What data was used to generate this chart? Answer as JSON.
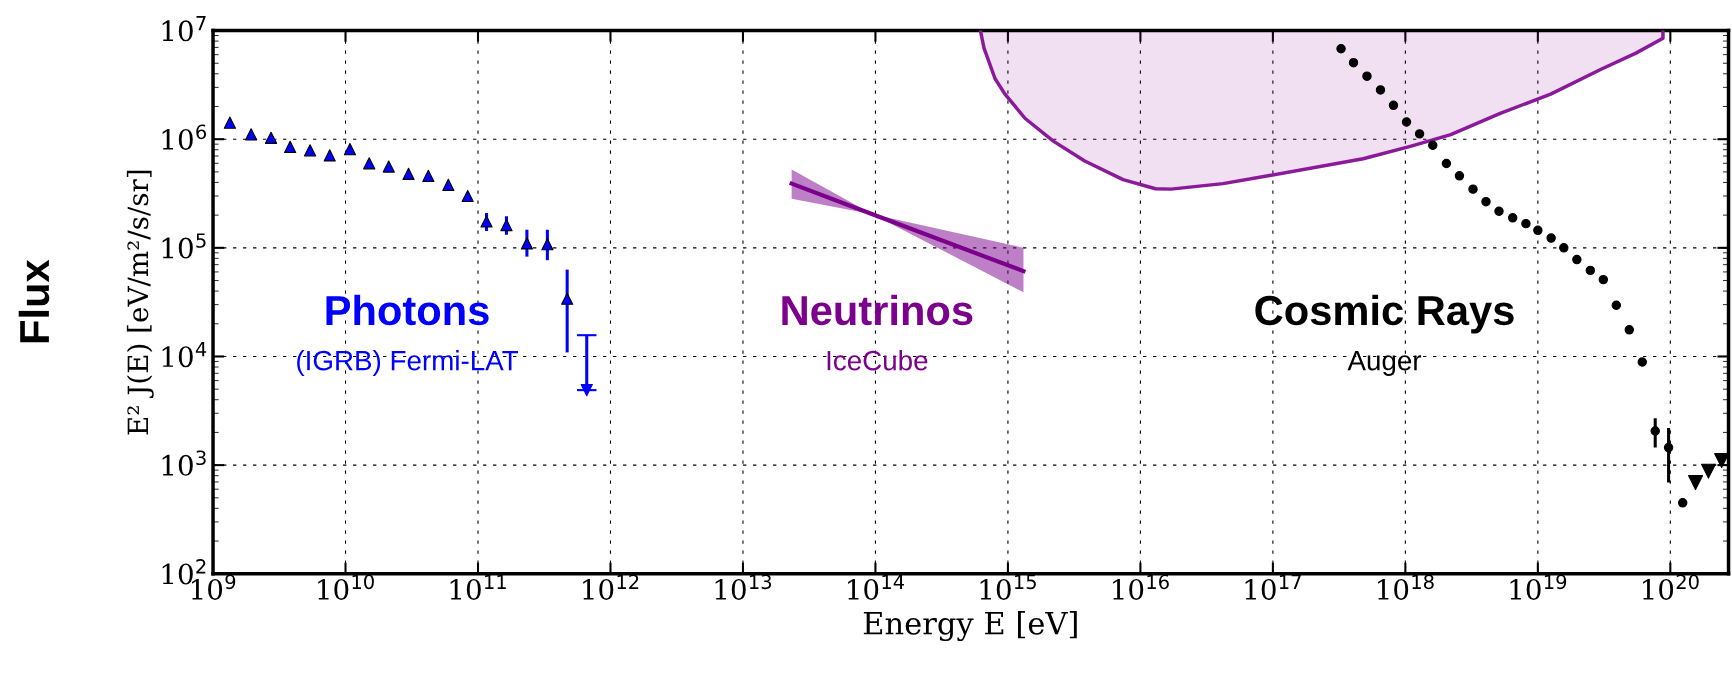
{
  "chart_data": {
    "type": "scatter",
    "xlabel": "Energy E [eV]",
    "ylabel": "E² J(E) [eV/m²/s/sr]",
    "log": "xy",
    "grid": true,
    "legend": false,
    "xlim": [
      1000000000.0,
      2.75e+20
    ],
    "xticks": [
      {
        "value": 1000000000.0,
        "label": "10$^{9}$"
      },
      {
        "value": 10000000000.0,
        "label": "10$^{10}$"
      },
      {
        "value": 100000000000.0,
        "label": "10$^{11}$"
      },
      {
        "value": 1000000000000.0,
        "label": "10$^{12}$"
      },
      {
        "value": 10000000000000.0,
        "label": "10$^{13}$"
      },
      {
        "value": 100000000000000.0,
        "label": "10$^{14}$"
      },
      {
        "value": 1000000000000000.0,
        "label": "10$^{15}$"
      },
      {
        "value": 1e+16,
        "label": "10$^{16}$"
      },
      {
        "value": 1e+17,
        "label": "10$^{17}$"
      },
      {
        "value": 1e+18,
        "label": "10$^{18}$"
      },
      {
        "value": 1e+19,
        "label": "10$^{19}$"
      },
      {
        "value": 1e+20,
        "label": "10$^{20}$"
      }
    ],
    "ylim": [
      100,
      10000000.0
    ],
    "yticks": [
      {
        "value": 100,
        "label": "10$^{2}$"
      },
      {
        "value": 1000,
        "label": "10$^{3}$"
      },
      {
        "value": 10000,
        "label": "10$^{4}$"
      },
      {
        "value": 100000,
        "label": "10$^{5}$"
      },
      {
        "value": 1000000,
        "label": "10$^{6}$"
      },
      {
        "value": 10000000,
        "label": "10$^{7}$"
      }
    ],
    "annotations": [
      "Flux",
      "(IGRB) Fermi-LAT",
      "IceCube",
      "Auger"
    ],
    "series": [
      {
        "name": "Photons",
        "marker": "triangle",
        "color": "#0000ff",
        "x": [
          1340000000.0,
          1940000000.0,
          2740000000.0,
          3820000000.0,
          5400000000.0,
          7600000000.0,
          10800000000.0,
          15100000000.0,
          21200000000.0,
          29900000000.0,
          42200000000.0,
          59700000000.0,
          83600000000.0,
          116000000000.0,
          164000000000.0,
          234000000000.0,
          334000000000.0
        ],
        "values": [
          1420000.0,
          1110000.0,
          1030000.0,
          850000.0,
          790000.0,
          710000.0,
          810000.0,
          600000.0,
          560000.0,
          480000.0,
          460000.0,
          380000.0,
          300000.0,
          175000.0,
          162000.0,
          110000.0,
          108000.0
        ],
        "errors": [
          null,
          null,
          null,
          null,
          null,
          null,
          null,
          null,
          null,
          null,
          null,
          null,
          null,
          [
            143000.0,
            209000.0
          ],
          [
            132000.0,
            195000.0
          ],
          [
            83000.0,
            147000.0
          ],
          [
            77000.0,
            147000.0
          ]
        ]
      },
      {
        "marker": "triangle",
        "color": "#0000ff",
        "x": [
          471000000000.0
        ],
        "values": [
          34000.0
        ],
        "errors": [
          [
            10900.0,
            63000.0
          ]
        ]
      },
      {
        "marker": "triangle_down",
        "color": "#0000ff",
        "x": [
          662000000000.0
        ],
        "values": [
          4900.0
        ],
        "errors": [
          [
            4900.0,
            15700.0
          ]
        ]
      },
      {
        "name": "Neutrinos",
        "type": "line",
        "color": "#7b008b",
        "x": [
          23300000000000.0,
          95000000000000.0,
          1310000000000000.0
        ],
        "values": [
          390000.0,
          204000.0,
          61000.0
        ],
        "lower": [
          283000.0,
          204000.0,
          39000.0
        ],
        "upper": [
          525000.0,
          204000.0,
          100000.0
        ]
      },
      {
        "type": "line",
        "color": "#8b1a9b",
        "x": [
          620000000000000.0,
          660000000000000.0,
          800000000000000.0,
          950000000000000.0,
          1350000000000000.0,
          2200000000000000.0,
          3800000000000000.0,
          7400000000000000.0,
          1.3e+16,
          1.7e+16,
          4.2e+16,
          9.2e+16,
          4.8e+17,
          1.09e+18,
          2.2e+18,
          5.2e+18,
          1.25e+19,
          3e+19,
          5.5e+19,
          8.8e+19,
          8.8e+19
        ],
        "values": [
          10000000.0,
          6900000.0,
          3600000.0,
          2600000.0,
          1550000.0,
          960000.0,
          630000.0,
          425000.0,
          350000.0,
          347000.0,
          390000.0,
          460000.0,
          660000.0,
          860000.0,
          1100000.0,
          1730000.0,
          2600000.0,
          4400000.0,
          6200000.0,
          8500000.0,
          10000000.0
        ],
        "lower": [
          10000000.0,
          6900000.0,
          3600000.0,
          2600000.0,
          1550000.0,
          960000.0,
          630000.0,
          425000.0,
          350000.0,
          347000.0,
          390000.0,
          460000.0,
          660000.0,
          860000.0,
          1100000.0,
          1730000.0,
          2600000.0,
          4400000.0,
          6200000.0,
          8500000.0,
          10000000.0
        ],
        "upper": [
          10000000.0,
          10000000.0,
          10000000.0,
          10000000.0,
          10000000.0,
          10000000.0,
          10000000.0,
          10000000.0,
          10000000.0,
          10000000.0,
          10000000.0,
          10000000.0,
          10000000.0,
          10000000.0,
          10000000.0,
          10000000.0,
          10000000.0,
          10000000.0,
          10000000.0,
          10000000.0,
          10000000.0
        ]
      },
      {
        "name": "Cosmic Rays",
        "marker": "circle",
        "color": "#000000",
        "x": [
          3.27e+17,
          4.06e+17,
          5.13e+17,
          6.49e+17,
          8.13e+17,
          1.02e+18,
          1.28e+18,
          1.61e+18,
          2.04e+18,
          2.56e+18,
          3.24e+18,
          4.06e+18,
          5.09e+18,
          6.46e+18,
          8.13e+18,
          1e+19,
          1.26e+19,
          1.57e+19,
          1.97e+19,
          2.49e+19,
          3.12e+19,
          3.91e+19,
          4.9e+19,
          6.14e+19,
          7.69e+19,
          9.7e+19,
          1.24e+20
        ],
        "values": [
          6800000.0,
          5060000.0,
          3800000.0,
          2840000.0,
          2050000.0,
          1440000.0,
          1120000.0,
          880000.0,
          597000.0,
          460000.0,
          347000.0,
          266000.0,
          217000.0,
          189000.0,
          167000.0,
          145000.0,
          123000.0,
          100000.0,
          78000.0,
          62000.0,
          51000.0,
          29600.0,
          17600.0,
          8900.0,
          2060.0,
          1450.0,
          450
        ],
        "errors": [
          null,
          null,
          null,
          null,
          null,
          null,
          null,
          null,
          null,
          null,
          null,
          null,
          null,
          null,
          null,
          null,
          null,
          null,
          null,
          null,
          null,
          null,
          null,
          null,
          [
            1450.0,
            2700.0
          ],
          [
            690,
            2200.0
          ],
          null
        ]
      },
      {
        "marker": "triangle_down",
        "color": "#000000",
        "x": [
          1.55e+20,
          1.94e+20,
          2.44e+20
        ],
        "values": [
          690,
          880,
          1100
        ]
      }
    ]
  }
}
